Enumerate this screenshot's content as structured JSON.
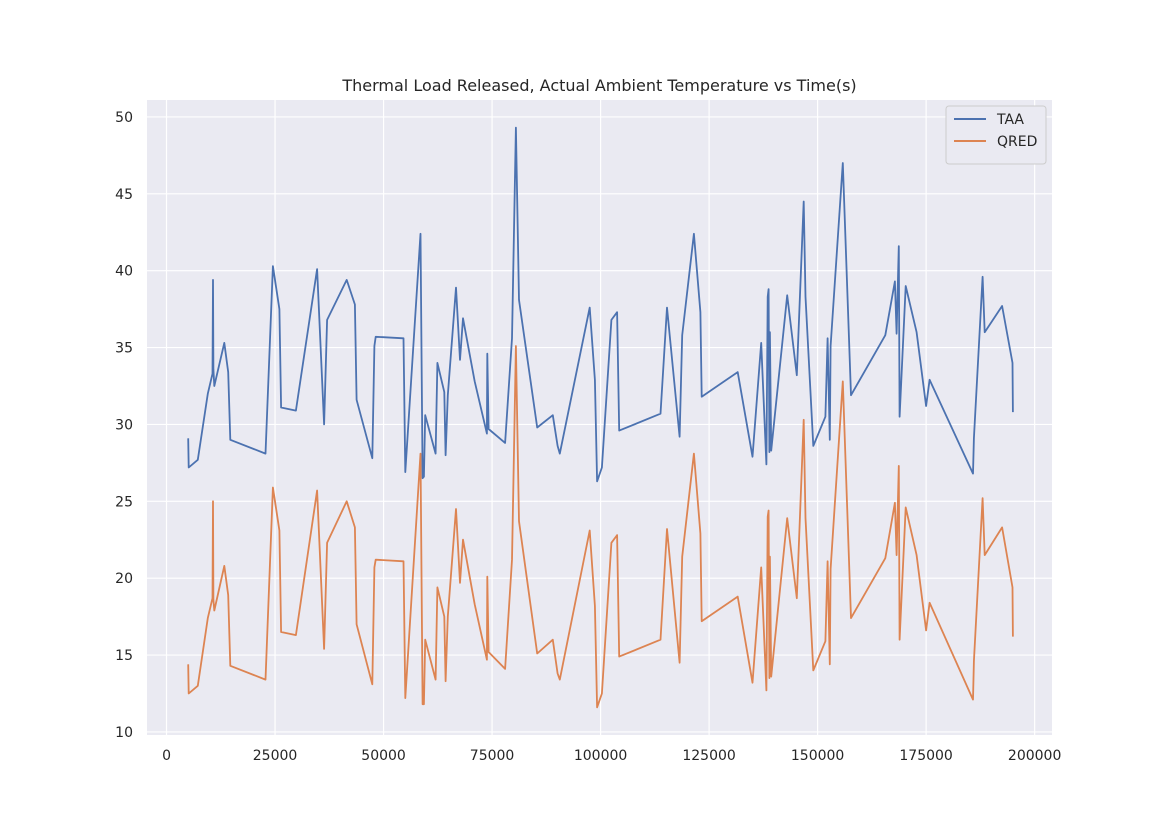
{
  "chart_data": {
    "type": "line",
    "title": "Thermal Load Released, Actual Ambient Temperature vs Time(s)",
    "xlabel": "",
    "ylabel": "",
    "xlim": [
      -4500,
      204000
    ],
    "ylim": [
      9.8,
      51.1
    ],
    "xticks": [
      0,
      25000,
      50000,
      75000,
      100000,
      125000,
      150000,
      175000,
      200000
    ],
    "yticks": [
      10,
      15,
      20,
      25,
      30,
      35,
      40,
      45,
      50
    ],
    "grid": true,
    "background": "#eaeaf2",
    "legend_position": "top-right",
    "series": [
      {
        "name": "TAA",
        "color": "#4c72b0",
        "x": [
          5000,
          5100,
          7200,
          9500,
          10600,
          10700,
          10800,
          11000,
          13300,
          14200,
          14700,
          22800,
          24500,
          26000,
          26400,
          29800,
          34700,
          36300,
          37000,
          41500,
          43400,
          43800,
          47400,
          47900,
          48200,
          54600,
          55000,
          58500,
          59000,
          59300,
          59600,
          62000,
          62400,
          64000,
          64300,
          64800,
          66700,
          67600,
          68300,
          71000,
          73800,
          73900,
          74200,
          78000,
          79600,
          80500,
          81200,
          85400,
          89000,
          90100,
          90600,
          97500,
          98700,
          99200,
          100300,
          102500,
          103800,
          104300,
          113800,
          115300,
          118200,
          118800,
          121500,
          123000,
          123300,
          131600,
          135000,
          137000,
          138200,
          138500,
          138700,
          138900,
          139000,
          139300,
          143000,
          145200,
          146800,
          147200,
          149000,
          151800,
          152300,
          152800,
          153000,
          155800,
          157700,
          165600,
          167800,
          168200,
          168700,
          168900,
          170300,
          172800,
          175000,
          175800,
          185800,
          186000,
          188000,
          188500,
          192500,
          194900,
          195000
        ],
        "values": [
          29.1,
          27.2,
          27.7,
          32.0,
          33.3,
          39.4,
          33.6,
          32.5,
          35.3,
          33.4,
          29.0,
          28.1,
          40.3,
          37.5,
          31.1,
          30.9,
          40.1,
          30.0,
          36.8,
          39.4,
          37.8,
          31.6,
          27.8,
          35.1,
          35.7,
          35.6,
          26.9,
          42.4,
          26.5,
          26.6,
          30.6,
          28.1,
          34.0,
          32.1,
          28.0,
          31.9,
          38.9,
          34.2,
          36.9,
          32.8,
          29.4,
          34.6,
          29.7,
          28.8,
          35.6,
          49.3,
          38.1,
          29.8,
          30.6,
          28.6,
          28.1,
          37.6,
          32.9,
          26.3,
          27.2,
          36.8,
          37.3,
          29.6,
          30.7,
          37.6,
          29.2,
          35.8,
          42.4,
          37.3,
          31.8,
          33.4,
          27.9,
          35.3,
          27.4,
          38.3,
          38.8,
          28.2,
          36.0,
          28.3,
          38.4,
          33.2,
          44.5,
          38.3,
          28.6,
          30.5,
          35.6,
          29.0,
          35.1,
          47.0,
          31.9,
          35.8,
          39.3,
          35.9,
          41.6,
          30.5,
          39.0,
          36.0,
          31.2,
          32.9,
          26.8,
          29.1,
          39.6,
          36.0,
          37.7,
          34.0,
          30.8
        ]
      },
      {
        "name": "QRED",
        "color": "#dd8452",
        "x": [
          5000,
          5100,
          7200,
          9500,
          10600,
          10700,
          10800,
          11000,
          13300,
          14200,
          14700,
          22800,
          24500,
          26000,
          26400,
          29800,
          34700,
          36300,
          37000,
          41500,
          43400,
          43800,
          47400,
          47900,
          48200,
          54600,
          55000,
          58500,
          59000,
          59300,
          59600,
          62000,
          62400,
          64000,
          64300,
          64800,
          66700,
          67600,
          68300,
          71000,
          73800,
          73900,
          74200,
          78000,
          79600,
          80500,
          81200,
          85400,
          89000,
          90100,
          90600,
          97500,
          98700,
          99200,
          100300,
          102500,
          103800,
          104300,
          113800,
          115300,
          118200,
          118800,
          121500,
          123000,
          123300,
          131600,
          135000,
          137000,
          138200,
          138500,
          138700,
          138900,
          139000,
          139300,
          143000,
          145200,
          146800,
          147200,
          149000,
          151800,
          152300,
          152800,
          153000,
          155800,
          157700,
          165600,
          167800,
          168200,
          168700,
          168900,
          170300,
          172800,
          175000,
          175800,
          185800,
          186000,
          188000,
          188500,
          192500,
          194900,
          195000
        ],
        "values": [
          14.4,
          12.5,
          13.0,
          17.4,
          18.7,
          25.0,
          18.6,
          17.9,
          20.8,
          18.9,
          14.3,
          13.4,
          25.9,
          23.1,
          16.5,
          16.3,
          25.7,
          15.4,
          22.3,
          25.0,
          23.3,
          17.0,
          13.1,
          20.7,
          21.2,
          21.1,
          12.2,
          28.1,
          11.8,
          11.8,
          16.0,
          13.4,
          19.4,
          17.5,
          13.3,
          17.5,
          24.5,
          19.7,
          22.5,
          18.3,
          14.7,
          20.1,
          15.2,
          14.1,
          21.2,
          35.1,
          23.7,
          15.1,
          16.0,
          13.8,
          13.4,
          23.1,
          18.2,
          11.6,
          12.5,
          22.3,
          22.8,
          14.9,
          16.0,
          23.2,
          14.5,
          21.4,
          28.1,
          22.9,
          17.2,
          18.8,
          13.2,
          20.7,
          12.7,
          24.0,
          24.4,
          13.5,
          21.4,
          13.6,
          23.9,
          18.7,
          30.3,
          23.9,
          14.0,
          15.9,
          21.1,
          14.4,
          20.6,
          32.8,
          17.4,
          21.3,
          24.9,
          21.5,
          27.3,
          16.0,
          24.6,
          21.5,
          16.6,
          18.4,
          12.1,
          14.6,
          25.2,
          21.5,
          23.3,
          19.4,
          16.2
        ]
      }
    ]
  }
}
